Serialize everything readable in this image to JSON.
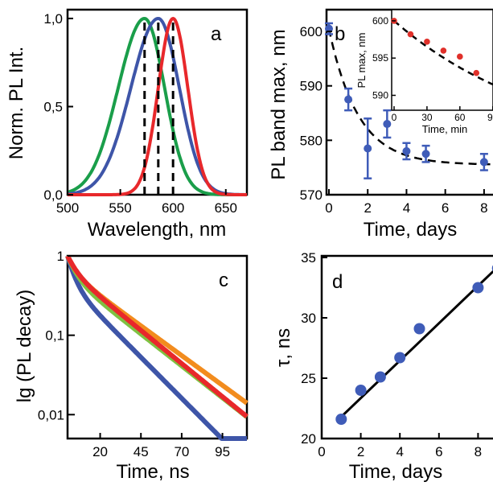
{
  "colors": {
    "red": "#e8282b",
    "blue": "#3e55a8",
    "green": "#1a9e4a",
    "orange": "#f28c1e",
    "light_green": "#7fc242",
    "marker_blue": "#3f5cb8",
    "marker_red": "#e0302a"
  },
  "chart_data": [
    {
      "panel": "a",
      "type": "line",
      "xlabel": "Wavelength, nm",
      "ylabel": "Norm. PL Int.",
      "xlim": [
        500,
        670
      ],
      "ylim": [
        0,
        1.05
      ],
      "xticks": [
        "500",
        "550",
        "600",
        "650"
      ],
      "yticks": [
        "0,0",
        "0,5",
        "1,0"
      ],
      "series": [
        {
          "color": "green",
          "peak": 573,
          "sigma_left": 25,
          "sigma_right": 19
        },
        {
          "color": "blue",
          "peak": 586,
          "sigma_left": 26,
          "sigma_right": 20
        },
        {
          "color": "red",
          "peak": 600,
          "sigma_left": 14,
          "sigma_right": 14
        }
      ],
      "vlines": [
        573,
        586,
        600
      ]
    },
    {
      "panel": "b",
      "type": "scatter",
      "xlabel": "Time, days",
      "ylabel": "PL band max, nm",
      "xlim": [
        0,
        9
      ],
      "ylim": [
        570,
        604
      ],
      "xticks": [
        "0",
        "2",
        "4",
        "6",
        "8"
      ],
      "yticks": [
        "570",
        "580",
        "590",
        "600"
      ],
      "points": [
        {
          "x": 0,
          "y": 600.5,
          "err": 1.0
        },
        {
          "x": 1,
          "y": 587.5,
          "err": 2.0
        },
        {
          "x": 2,
          "y": 578.5,
          "err": 5.5
        },
        {
          "x": 3,
          "y": 583.0,
          "err": 2.5
        },
        {
          "x": 4,
          "y": 578.0,
          "err": 1.5
        },
        {
          "x": 5,
          "y": 577.5,
          "err": 1.5
        },
        {
          "x": 8,
          "y": 576.0,
          "err": 1.5
        }
      ],
      "fit": {
        "y_inf": 575.5,
        "amplitude": 25,
        "tau": 1.5
      },
      "inset": {
        "xlabel": "Time, min",
        "ylabel": "PL max, nm",
        "xlim": [
          0,
          110
        ],
        "ylim": [
          588,
          601.5
        ],
        "xticks": [
          "0",
          "30",
          "60",
          "90"
        ],
        "yticks": [
          "590",
          "595",
          "600"
        ],
        "points": [
          {
            "x": 0,
            "y": 600.0
          },
          {
            "x": 15,
            "y": 598.2
          },
          {
            "x": 30,
            "y": 597.2
          },
          {
            "x": 45,
            "y": 596.0
          },
          {
            "x": 60,
            "y": 595.2
          },
          {
            "x": 75,
            "y": 593.0
          },
          {
            "x": 97,
            "y": 591.0
          }
        ],
        "fit": {
          "y_inf": 582,
          "amplitude": 18,
          "tau": 140
        }
      }
    },
    {
      "panel": "c",
      "type": "line",
      "xlabel": "Time, ns",
      "ylabel": "lg (PL decay)",
      "yscale": "log",
      "xlim": [
        0,
        110
      ],
      "ylim": [
        0.005,
        1
      ],
      "xticks": [
        "20",
        "45",
        "70",
        "95"
      ],
      "yticks": [
        "0,01",
        "0,1",
        "1"
      ],
      "series": [
        {
          "color": "blue",
          "a": 0.55,
          "t1": 4,
          "b": 0.45,
          "t2": 21
        },
        {
          "color": "light_green",
          "a": 0.45,
          "t1": 5,
          "b": 0.55,
          "t2": 27
        },
        {
          "color": "orange",
          "a": 0.38,
          "t1": 5,
          "b": 0.62,
          "t2": 29
        },
        {
          "color": "red",
          "a": 0.35,
          "t1": 5,
          "b": 0.65,
          "t2": 26
        }
      ]
    },
    {
      "panel": "d",
      "type": "scatter",
      "xlabel": "Time, days",
      "ylabel": "τ, ns",
      "xlim": [
        0,
        9.3
      ],
      "ylim": [
        20,
        35
      ],
      "xticks": [
        "0",
        "2",
        "4",
        "6",
        "8"
      ],
      "yticks": [
        "20",
        "25",
        "30",
        "35"
      ],
      "points": [
        {
          "x": 1,
          "y": 21.6
        },
        {
          "x": 2,
          "y": 24.0
        },
        {
          "x": 3,
          "y": 25.1
        },
        {
          "x": 4,
          "y": 26.7
        },
        {
          "x": 5,
          "y": 29.1
        },
        {
          "x": 8,
          "y": 32.5
        },
        {
          "x": 9,
          "y": 34.1
        }
      ],
      "fit": {
        "x0": 1,
        "y0": 21.8,
        "x1": 9,
        "y1": 34.2
      }
    }
  ],
  "labels": {
    "panel_a": "a",
    "panel_b": "b",
    "panel_c": "c",
    "panel_d": "d",
    "a_xlabel": "Wavelength, nm",
    "a_ylabel": "Norm. PL Int.",
    "b_xlabel": "Time, days",
    "b_ylabel": "PL band max, nm",
    "b_inset_xlabel": "Time, min",
    "b_inset_ylabel": "PL max, nm",
    "c_xlabel": "Time, ns",
    "c_ylabel": "lg (PL decay)",
    "d_xlabel": "Time, days",
    "d_ylabel": "τ, ns"
  }
}
